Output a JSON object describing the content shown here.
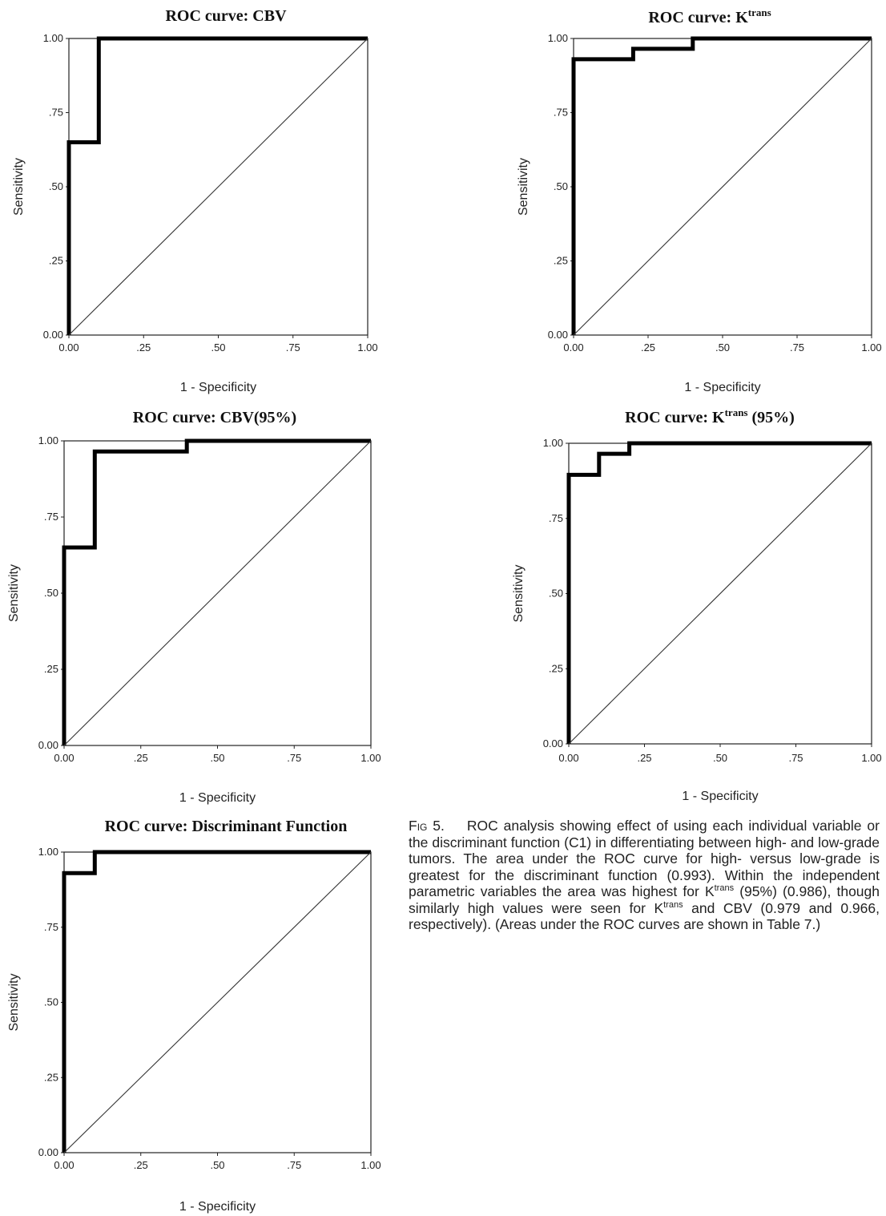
{
  "chart_data": [
    {
      "type": "line",
      "title": "ROC curve: CBV",
      "xlabel": "1 - Specificity",
      "ylabel": "Sensitivity",
      "xlim": [
        0,
        1
      ],
      "ylim": [
        0,
        1
      ],
      "x_ticks": [
        "0.00",
        ".25",
        ".50",
        ".75",
        "1.00"
      ],
      "y_ticks": [
        "0.00",
        ".25",
        ".50",
        ".75",
        "1.00"
      ],
      "grid": false,
      "series": [
        {
          "role": "roc",
          "points": [
            [
              0,
              0
            ],
            [
              0,
              0.65
            ],
            [
              0.1,
              0.65
            ],
            [
              0.1,
              1
            ],
            [
              1,
              1
            ]
          ]
        },
        {
          "role": "reference",
          "points": [
            [
              0,
              0
            ],
            [
              1,
              1
            ]
          ]
        }
      ]
    },
    {
      "type": "line",
      "title": "ROC curve: K",
      "title_sup": "trans",
      "xlabel": "1 - Specificity",
      "ylabel": "Sensitivity",
      "xlim": [
        0,
        1
      ],
      "ylim": [
        0,
        1
      ],
      "x_ticks": [
        "0.00",
        ".25",
        ".50",
        ".75",
        "1.00"
      ],
      "y_ticks": [
        "0.00",
        ".25",
        ".50",
        ".75",
        "1.00"
      ],
      "grid": false,
      "series": [
        {
          "role": "roc",
          "points": [
            [
              0,
              0
            ],
            [
              0,
              0.93
            ],
            [
              0.2,
              0.93
            ],
            [
              0.2,
              0.965
            ],
            [
              0.4,
              0.965
            ],
            [
              0.4,
              1
            ],
            [
              1,
              1
            ]
          ]
        },
        {
          "role": "reference",
          "points": [
            [
              0,
              0
            ],
            [
              1,
              1
            ]
          ]
        }
      ]
    },
    {
      "type": "line",
      "title": "ROC curve: CBV(95%)",
      "xlabel": "1 - Specificity",
      "ylabel": "Sensitivity",
      "xlim": [
        0,
        1
      ],
      "ylim": [
        0,
        1
      ],
      "x_ticks": [
        "0.00",
        ".25",
        ".50",
        ".75",
        "1.00"
      ],
      "y_ticks": [
        "0.00",
        ".25",
        ".50",
        ".75",
        "1.00"
      ],
      "grid": false,
      "series": [
        {
          "role": "roc",
          "points": [
            [
              0,
              0
            ],
            [
              0,
              0.65
            ],
            [
              0.1,
              0.65
            ],
            [
              0.1,
              0.965
            ],
            [
              0.4,
              0.965
            ],
            [
              0.4,
              1
            ],
            [
              1,
              1
            ]
          ]
        },
        {
          "role": "reference",
          "points": [
            [
              0,
              0
            ],
            [
              1,
              1
            ]
          ]
        }
      ]
    },
    {
      "type": "line",
      "title": "ROC curve: K",
      "title_sup": "trans",
      "title_suffix": " (95%)",
      "xlabel": "1 - Specificity",
      "ylabel": "Sensitivity",
      "xlim": [
        0,
        1
      ],
      "ylim": [
        0,
        1
      ],
      "x_ticks": [
        "0.00",
        ".25",
        ".50",
        ".75",
        "1.00"
      ],
      "y_ticks": [
        "0.00",
        ".25",
        ".50",
        ".75",
        "1.00"
      ],
      "grid": false,
      "series": [
        {
          "role": "roc",
          "points": [
            [
              0,
              0
            ],
            [
              0,
              0.895
            ],
            [
              0.1,
              0.895
            ],
            [
              0.1,
              0.965
            ],
            [
              0.2,
              0.965
            ],
            [
              0.2,
              1
            ],
            [
              1,
              1
            ]
          ]
        },
        {
          "role": "reference",
          "points": [
            [
              0,
              0
            ],
            [
              1,
              1
            ]
          ]
        }
      ]
    },
    {
      "type": "line",
      "title": "ROC curve: Discriminant Function",
      "xlabel": "1 - Specificity",
      "ylabel": "Sensitivity",
      "xlim": [
        0,
        1
      ],
      "ylim": [
        0,
        1
      ],
      "x_ticks": [
        "0.00",
        ".25",
        ".50",
        ".75",
        "1.00"
      ],
      "y_ticks": [
        "0.00",
        ".25",
        ".50",
        ".75",
        "1.00"
      ],
      "grid": false,
      "series": [
        {
          "role": "roc",
          "points": [
            [
              0,
              0
            ],
            [
              0,
              0.93
            ],
            [
              0.1,
              0.93
            ],
            [
              0.1,
              1
            ],
            [
              1,
              1
            ]
          ]
        },
        {
          "role": "reference",
          "points": [
            [
              0,
              0
            ],
            [
              1,
              1
            ]
          ]
        }
      ]
    }
  ],
  "caption": {
    "label": "Fig 5.",
    "p1": "ROC analysis showing effect of using each individual variable or the discriminant function (C1) in differentiating between high- and low-grade tumors. The area under the ROC curve for high- versus low-grade is greatest for the discriminant function (0.993). Within the independent parametric variables the area was highest for K",
    "sup1": "trans",
    "p2": " (95%) (0.986), though similarly high values were seen for K",
    "sup2": "trans",
    "p3": " and CBV (0.979 and 0.966, respectively). (Areas under the ROC curves are shown in Table 7.)"
  }
}
